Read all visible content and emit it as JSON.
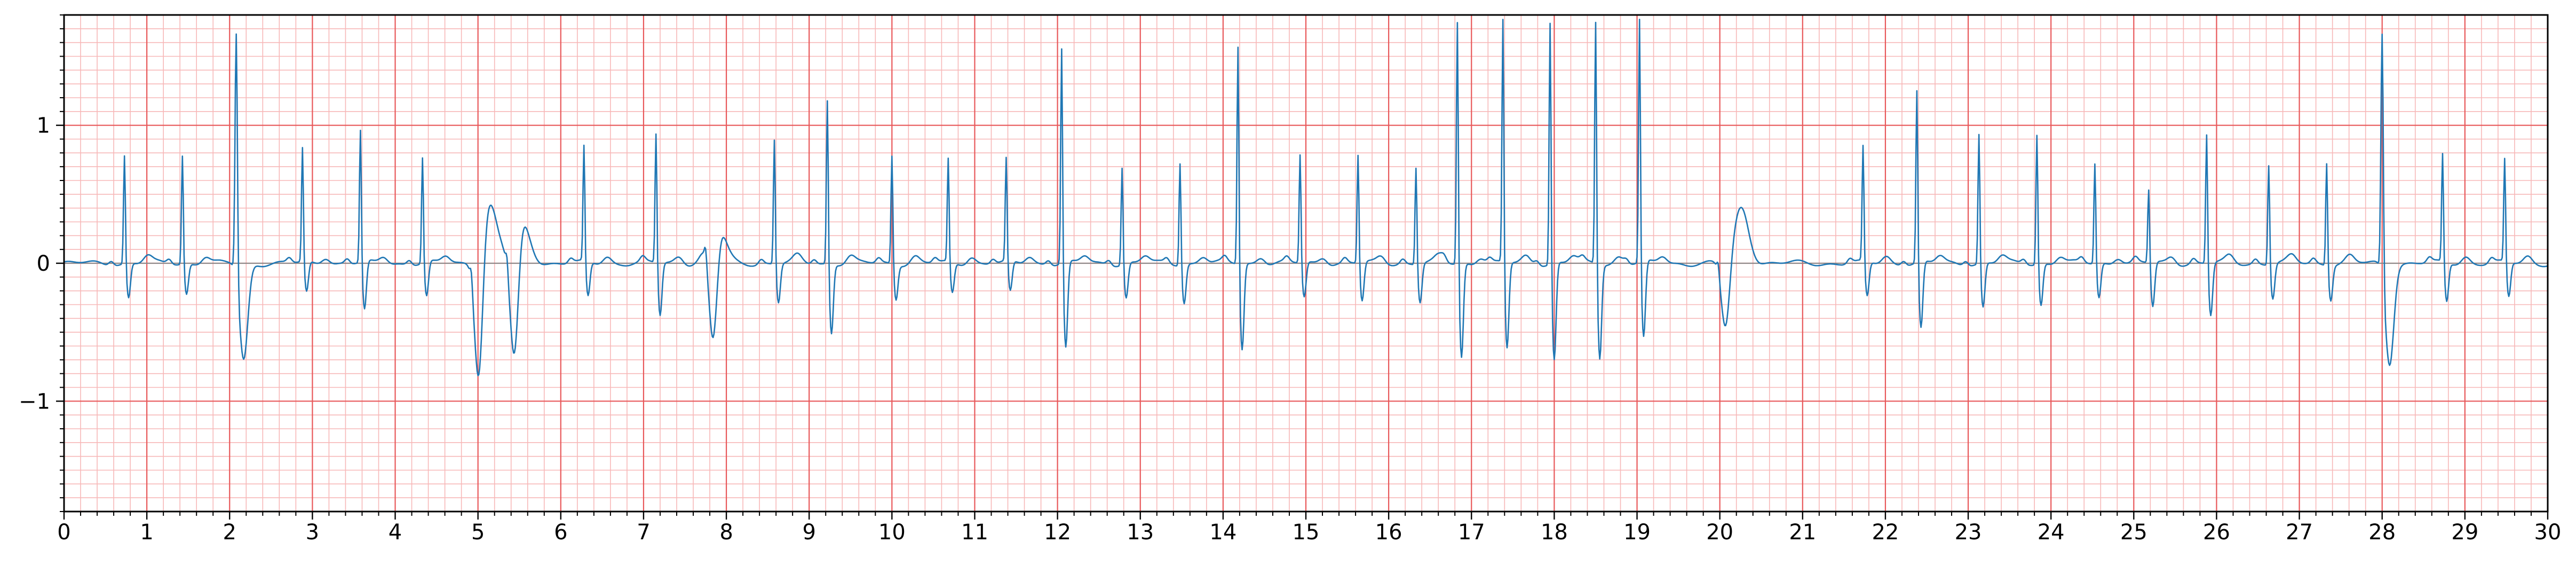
{
  "chart_data": {
    "type": "line",
    "title": "",
    "xlabel": "",
    "ylabel": "",
    "xlim": [
      0,
      30
    ],
    "ylim": [
      -1.8,
      1.8
    ],
    "x_ticks": [
      "0",
      "1",
      "2",
      "3",
      "4",
      "5",
      "6",
      "7",
      "8",
      "9",
      "10",
      "11",
      "12",
      "13",
      "14",
      "15",
      "16",
      "17",
      "18",
      "19",
      "20",
      "21",
      "22",
      "23",
      "24",
      "25",
      "26",
      "27",
      "28",
      "29",
      "30"
    ],
    "y_ticks": [
      "−1",
      "0",
      "1"
    ],
    "grid": true,
    "legend": "none",
    "colors": {
      "line": "#1f77b4",
      "grid_major": "#e8585a",
      "grid_minor": "#f7b8b8",
      "axis": "#000000",
      "zero_line": "#8a8a8a"
    },
    "beats": [
      {
        "t": 0.73,
        "r": 0.8,
        "s": -0.25
      },
      {
        "t": 1.43,
        "r": 0.8,
        "s": -0.22
      },
      {
        "t": 2.08,
        "r": 1.8,
        "s": -0.7,
        "pvc": true
      },
      {
        "t": 2.88,
        "r": 0.84,
        "s": -0.22
      },
      {
        "t": 3.58,
        "r": 0.98,
        "s": -0.35
      },
      {
        "t": 4.33,
        "r": 0.78,
        "s": -0.25
      },
      {
        "t": 4.92,
        "r": 0.1,
        "s": -1.0,
        "pvc": true
      },
      {
        "t": 5.35,
        "r": 0.1,
        "s": -0.9,
        "pvc": true
      },
      {
        "t": 6.28,
        "r": 0.85,
        "s": -0.25
      },
      {
        "t": 7.15,
        "r": 0.96,
        "s": -0.38
      },
      {
        "t": 7.75,
        "r": 0.1,
        "s": -0.87,
        "pvc": true
      },
      {
        "t": 8.58,
        "r": 0.92,
        "s": -0.28
      },
      {
        "t": 9.22,
        "r": 1.22,
        "s": -0.5
      },
      {
        "t": 10.0,
        "r": 0.8,
        "s": -0.25
      },
      {
        "t": 10.68,
        "r": 0.76,
        "s": -0.22
      },
      {
        "t": 11.38,
        "r": 0.76,
        "s": -0.22
      },
      {
        "t": 12.05,
        "r": 1.6,
        "s": -0.62
      },
      {
        "t": 12.78,
        "r": 0.72,
        "s": -0.25
      },
      {
        "t": 13.48,
        "r": 0.76,
        "s": -0.28
      },
      {
        "t": 14.18,
        "r": 1.62,
        "s": -0.62
      },
      {
        "t": 14.93,
        "r": 0.8,
        "s": -0.25
      },
      {
        "t": 15.63,
        "r": 0.8,
        "s": -0.28
      },
      {
        "t": 16.33,
        "r": 0.72,
        "s": -0.28
      },
      {
        "t": 16.83,
        "r": 1.8,
        "s": -0.68
      },
      {
        "t": 17.38,
        "r": 1.8,
        "s": -0.62
      },
      {
        "t": 17.95,
        "r": 1.8,
        "s": -0.7
      },
      {
        "t": 18.5,
        "r": 1.8,
        "s": -0.68
      },
      {
        "t": 19.03,
        "r": 1.8,
        "s": -0.55
      },
      {
        "t": 19.98,
        "r": 0.08,
        "s": -0.5,
        "pvc": true
      },
      {
        "t": 21.73,
        "r": 0.85,
        "s": -0.25
      },
      {
        "t": 22.38,
        "r": 1.28,
        "s": -0.48
      },
      {
        "t": 23.13,
        "r": 0.96,
        "s": -0.32
      },
      {
        "t": 23.83,
        "r": 0.96,
        "s": -0.3
      },
      {
        "t": 24.53,
        "r": 0.74,
        "s": -0.25
      },
      {
        "t": 25.18,
        "r": 0.55,
        "s": -0.32
      },
      {
        "t": 25.88,
        "r": 0.96,
        "s": -0.38
      },
      {
        "t": 26.63,
        "r": 0.74,
        "s": -0.25
      },
      {
        "t": 27.33,
        "r": 0.76,
        "s": -0.25
      },
      {
        "t": 28.0,
        "r": 1.8,
        "s": -0.72,
        "pvc": true
      },
      {
        "t": 28.73,
        "r": 0.8,
        "s": -0.28
      },
      {
        "t": 29.48,
        "r": 0.76,
        "s": -0.25
      }
    ],
    "waves": [
      {
        "t": 5.13,
        "a": 0.44,
        "w": 0.1
      },
      {
        "t": 5.52,
        "a": 0.32,
        "w": 0.1
      },
      {
        "t": 7.87,
        "a": 0.34,
        "w": 0.1
      },
      {
        "t": 20.26,
        "a": 0.4,
        "w": 0.09
      }
    ]
  }
}
